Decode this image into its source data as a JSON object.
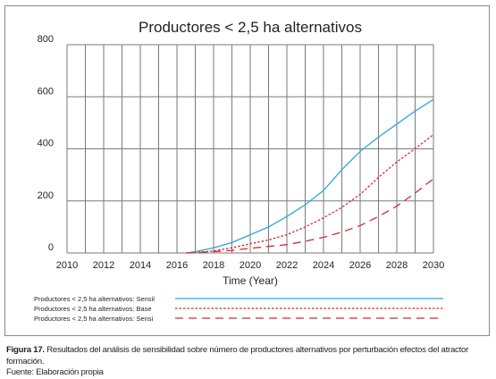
{
  "chart_data": {
    "type": "line",
    "title": "Productores < 2,5 ha alternativos",
    "xlabel": "Time (Year)",
    "ylabel": "",
    "xlim": [
      2010,
      2030
    ],
    "ylim": [
      0,
      800
    ],
    "x_ticks": [
      "2010",
      "2012",
      "2014",
      "2016",
      "2018",
      "2020",
      "2022",
      "2024",
      "2026",
      "2028",
      "2030"
    ],
    "y_ticks": [
      "0",
      "200",
      "400",
      "600",
      "800"
    ],
    "grid": true,
    "legend_position": "bottom",
    "series": [
      {
        "name": "Productores < 2,5 ha alternativos: Sensil",
        "color": "#29a8e0",
        "style": "solid",
        "x": [
          2016.5,
          2017,
          2018,
          2019,
          2020,
          2021,
          2022,
          2023,
          2024,
          2024.5,
          2025,
          2026,
          2027,
          2028,
          2029,
          2030
        ],
        "y": [
          0,
          5,
          20,
          40,
          70,
          100,
          140,
          185,
          240,
          280,
          320,
          390,
          445,
          495,
          545,
          590
        ]
      },
      {
        "name": "Productores < 2,5 ha alternativos: Base",
        "color": "#d42a2a",
        "style": "dotted",
        "x": [
          2016.5,
          2017,
          2018,
          2019,
          2020,
          2021,
          2022,
          2023,
          2024,
          2025,
          2026,
          2027,
          2028,
          2029,
          2030
        ],
        "y": [
          0,
          2,
          8,
          20,
          35,
          50,
          70,
          100,
          135,
          175,
          225,
          290,
          350,
          400,
          455
        ]
      },
      {
        "name": "Productores < 2,5 ha alternativos: Sensi",
        "color": "#d42a2a",
        "style": "dashed",
        "x": [
          2016.5,
          2017,
          2018,
          2019,
          2020,
          2021,
          2022,
          2023,
          2024,
          2025,
          2026,
          2027,
          2028,
          2029,
          2030
        ],
        "y": [
          0,
          1,
          5,
          10,
          18,
          25,
          32,
          45,
          60,
          80,
          105,
          140,
          180,
          230,
          285
        ]
      }
    ]
  },
  "caption": {
    "label": "Figura 17.",
    "text": " Resultados del análisis de sensibilidad sobre número de productores alternativos por perturbación efectos del atractor formación.",
    "source": "Fuente: Elaboración propia"
  }
}
